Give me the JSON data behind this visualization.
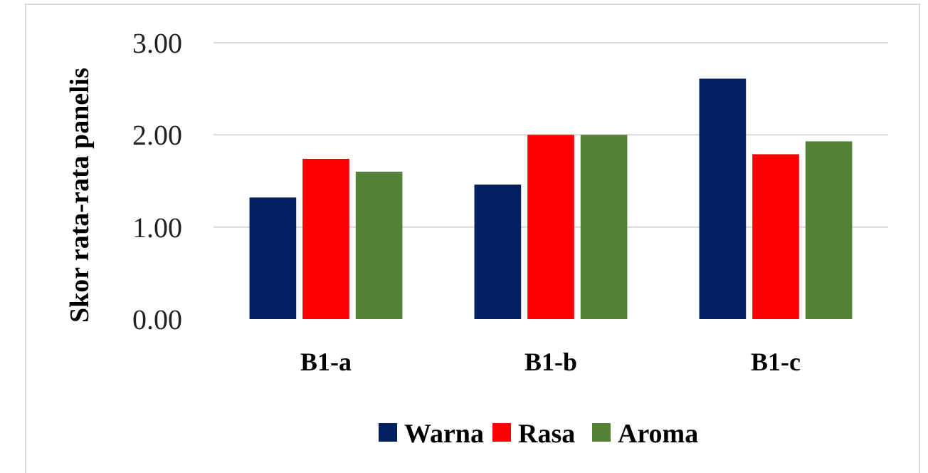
{
  "chart_data": {
    "type": "bar",
    "ylabel": "Skor rata-rata  panelis",
    "categories": [
      "B1-a",
      "B1-b",
      "B1-c"
    ],
    "series": [
      {
        "name": "Warna",
        "color": "#002060",
        "values": [
          1.32,
          1.46,
          2.61
        ]
      },
      {
        "name": "Rasa",
        "color": "#ff0000",
        "values": [
          1.74,
          2.0,
          1.79
        ]
      },
      {
        "name": "Aroma",
        "color": "#538135",
        "values": [
          1.6,
          2.0,
          1.93
        ]
      }
    ],
    "ylim": [
      0,
      3
    ],
    "yticks": [
      {
        "value": 0,
        "label": "0.00"
      },
      {
        "value": 1,
        "label": "1.00"
      },
      {
        "value": 2,
        "label": "2.00"
      },
      {
        "value": 3,
        "label": "3.00"
      }
    ],
    "grid": "y",
    "legend": "bottom"
  }
}
